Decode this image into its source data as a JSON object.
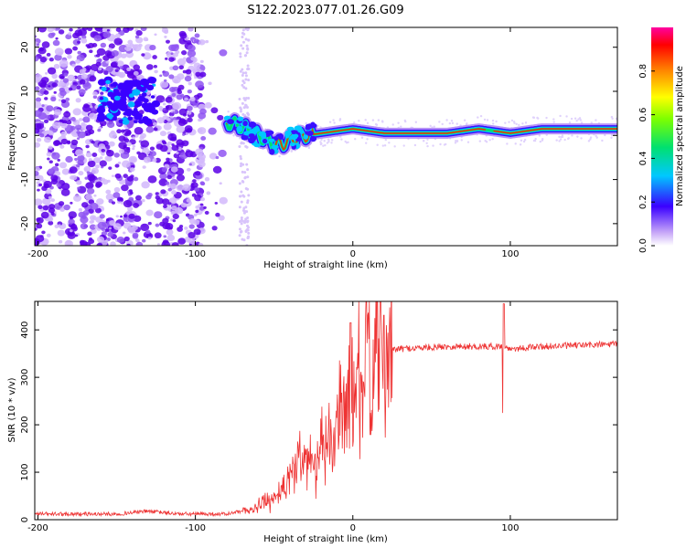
{
  "title": "S122.2023.077.01.26.G09",
  "chart_data": [
    {
      "type": "heatmap",
      "xlabel": "Height of straight line (km)",
      "ylabel": "Frequency (Hz)",
      "xlim": [
        -202,
        168
      ],
      "ylim": [
        -25,
        24.5
      ],
      "xticks": [
        -200,
        -100,
        0,
        100
      ],
      "yticks": [
        -20,
        -10,
        0,
        10,
        20
      ],
      "ridge": {
        "x": [
          -80,
          -70,
          -60,
          -50,
          -45,
          -40,
          -30,
          -20,
          -10,
          0,
          20,
          40,
          60,
          80,
          100,
          120,
          140,
          168
        ],
        "freq": [
          3,
          2,
          0,
          -2,
          -2,
          -1,
          0,
          0.5,
          1,
          1.5,
          0.5,
          0.5,
          0.5,
          1.5,
          0.5,
          1.5,
          1.5,
          1.5
        ]
      },
      "colorbar": {
        "label": "Normalized spectral amplitude",
        "range": [
          0,
          1
        ],
        "ticks": [
          0.0,
          0.2,
          0.4,
          0.6,
          0.8
        ],
        "tick_labels": [
          "0.0",
          "0.2",
          "0.4",
          "0.6",
          "0.8"
        ]
      }
    },
    {
      "type": "line",
      "xlabel": "Height of straight line (km)",
      "ylabel": "SNR (10 * v/v)",
      "xlim": [
        -202,
        168
      ],
      "ylim": [
        0,
        460
      ],
      "xticks": [
        -200,
        -100,
        0,
        100
      ],
      "yticks": [
        0,
        100,
        200,
        300,
        400
      ],
      "color": "#ee3333",
      "envelope": {
        "x": [
          -202,
          -150,
          -130,
          -110,
          -80,
          -65,
          -60,
          -55,
          -50,
          -45,
          -40,
          -35,
          -30,
          -25,
          -20,
          -15,
          -10,
          -5,
          0,
          5,
          10,
          15,
          20,
          25,
          30,
          40,
          60,
          80,
          95,
          100,
          120,
          150,
          168
        ],
        "snr": [
          12,
          12,
          18,
          12,
          12,
          20,
          30,
          35,
          45,
          70,
          90,
          120,
          140,
          130,
          140,
          155,
          190,
          230,
          270,
          305,
          320,
          335,
          350,
          358,
          360,
          362,
          365,
          365,
          365,
          360,
          365,
          368,
          370
        ]
      }
    }
  ]
}
